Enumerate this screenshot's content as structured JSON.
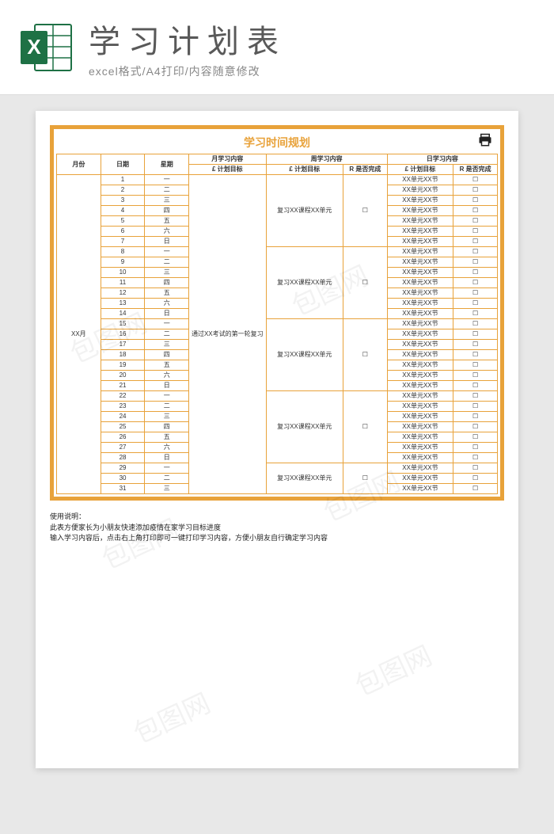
{
  "header": {
    "title": "学习计划表",
    "subtitle": "excel格式/A4打印/内容随意修改"
  },
  "sheet": {
    "title": "学习时间规划",
    "print_label": "打印",
    "columns": {
      "month": "月份",
      "date": "日期",
      "weekday": "星期",
      "month_group": "月学习内容",
      "month_plan": "£ 计划目标",
      "week_group": "周学习内容",
      "week_plan": "£ 计划目标",
      "week_done": "R 是否完成",
      "day_group": "日学习内容",
      "day_plan": "£ 计划目标",
      "day_done": "R 是否完成"
    },
    "month_label": "XX月",
    "month_plan_text": "通过XX考试的第一轮复习",
    "week_plan_text": "复习XX课程XX单元",
    "day_plan_text": "XX单元XX节",
    "checkbox": "☐",
    "weekdays": [
      "一",
      "二",
      "三",
      "四",
      "五",
      "六",
      "日",
      "一",
      "二",
      "三",
      "四",
      "五",
      "六",
      "日",
      "一",
      "二",
      "三",
      "四",
      "五",
      "六",
      "日",
      "一",
      "二",
      "三",
      "四",
      "五",
      "六",
      "日",
      "一",
      "二",
      "三"
    ],
    "week_spans": [
      7,
      7,
      7,
      7,
      3
    ],
    "usage": {
      "h": "使用说明：",
      "l1": "此表方便家长为小朋友快速添加疫情在家学习目标进度",
      "l2": "输入学习内容后，点击右上角打印即可一键打印学习内容，方便小朋友自行确定学习内容"
    }
  },
  "style": {
    "accent": "#e8a23a",
    "excel_green": "#1e7145"
  },
  "watermark": "包图网"
}
